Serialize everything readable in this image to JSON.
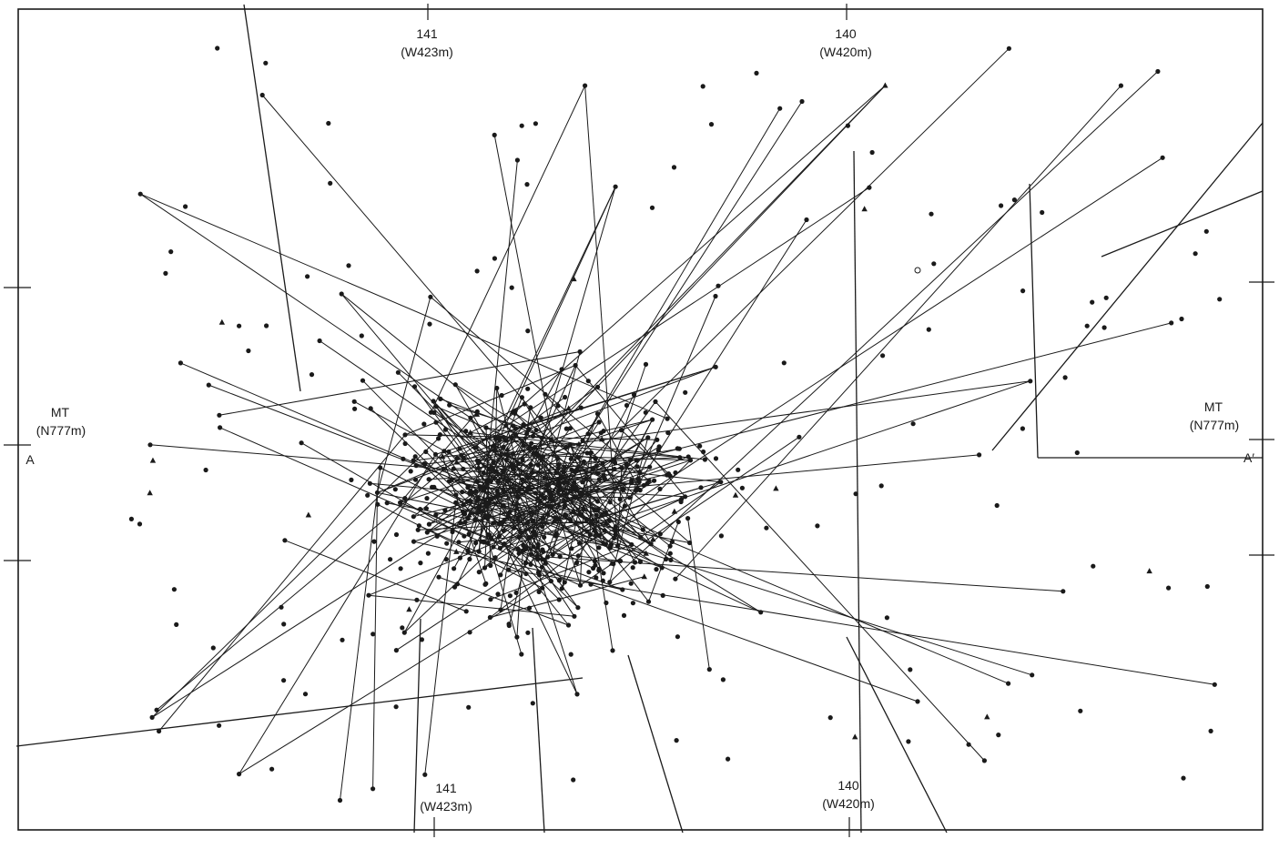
{
  "grid_labels": {
    "top_left_number": "141",
    "top_left_coord": "(W423m)",
    "top_right_number": "140",
    "top_right_coord": "(W420m)",
    "bottom_left_number": "141",
    "bottom_left_coord": "(W423m)",
    "bottom_right_number": "140",
    "bottom_right_coord": "(W420m)",
    "left_mt": "MT",
    "left_coord": "(N777m)",
    "left_section": "A",
    "right_mt": "MT",
    "right_coord": "(N777m)",
    "right_section": "A′"
  },
  "colors": {
    "ink": "#1a1a1a",
    "paper": "#ffffff"
  },
  "symbols": [
    "filled-circle",
    "filled-triangle",
    "open-circle"
  ]
}
